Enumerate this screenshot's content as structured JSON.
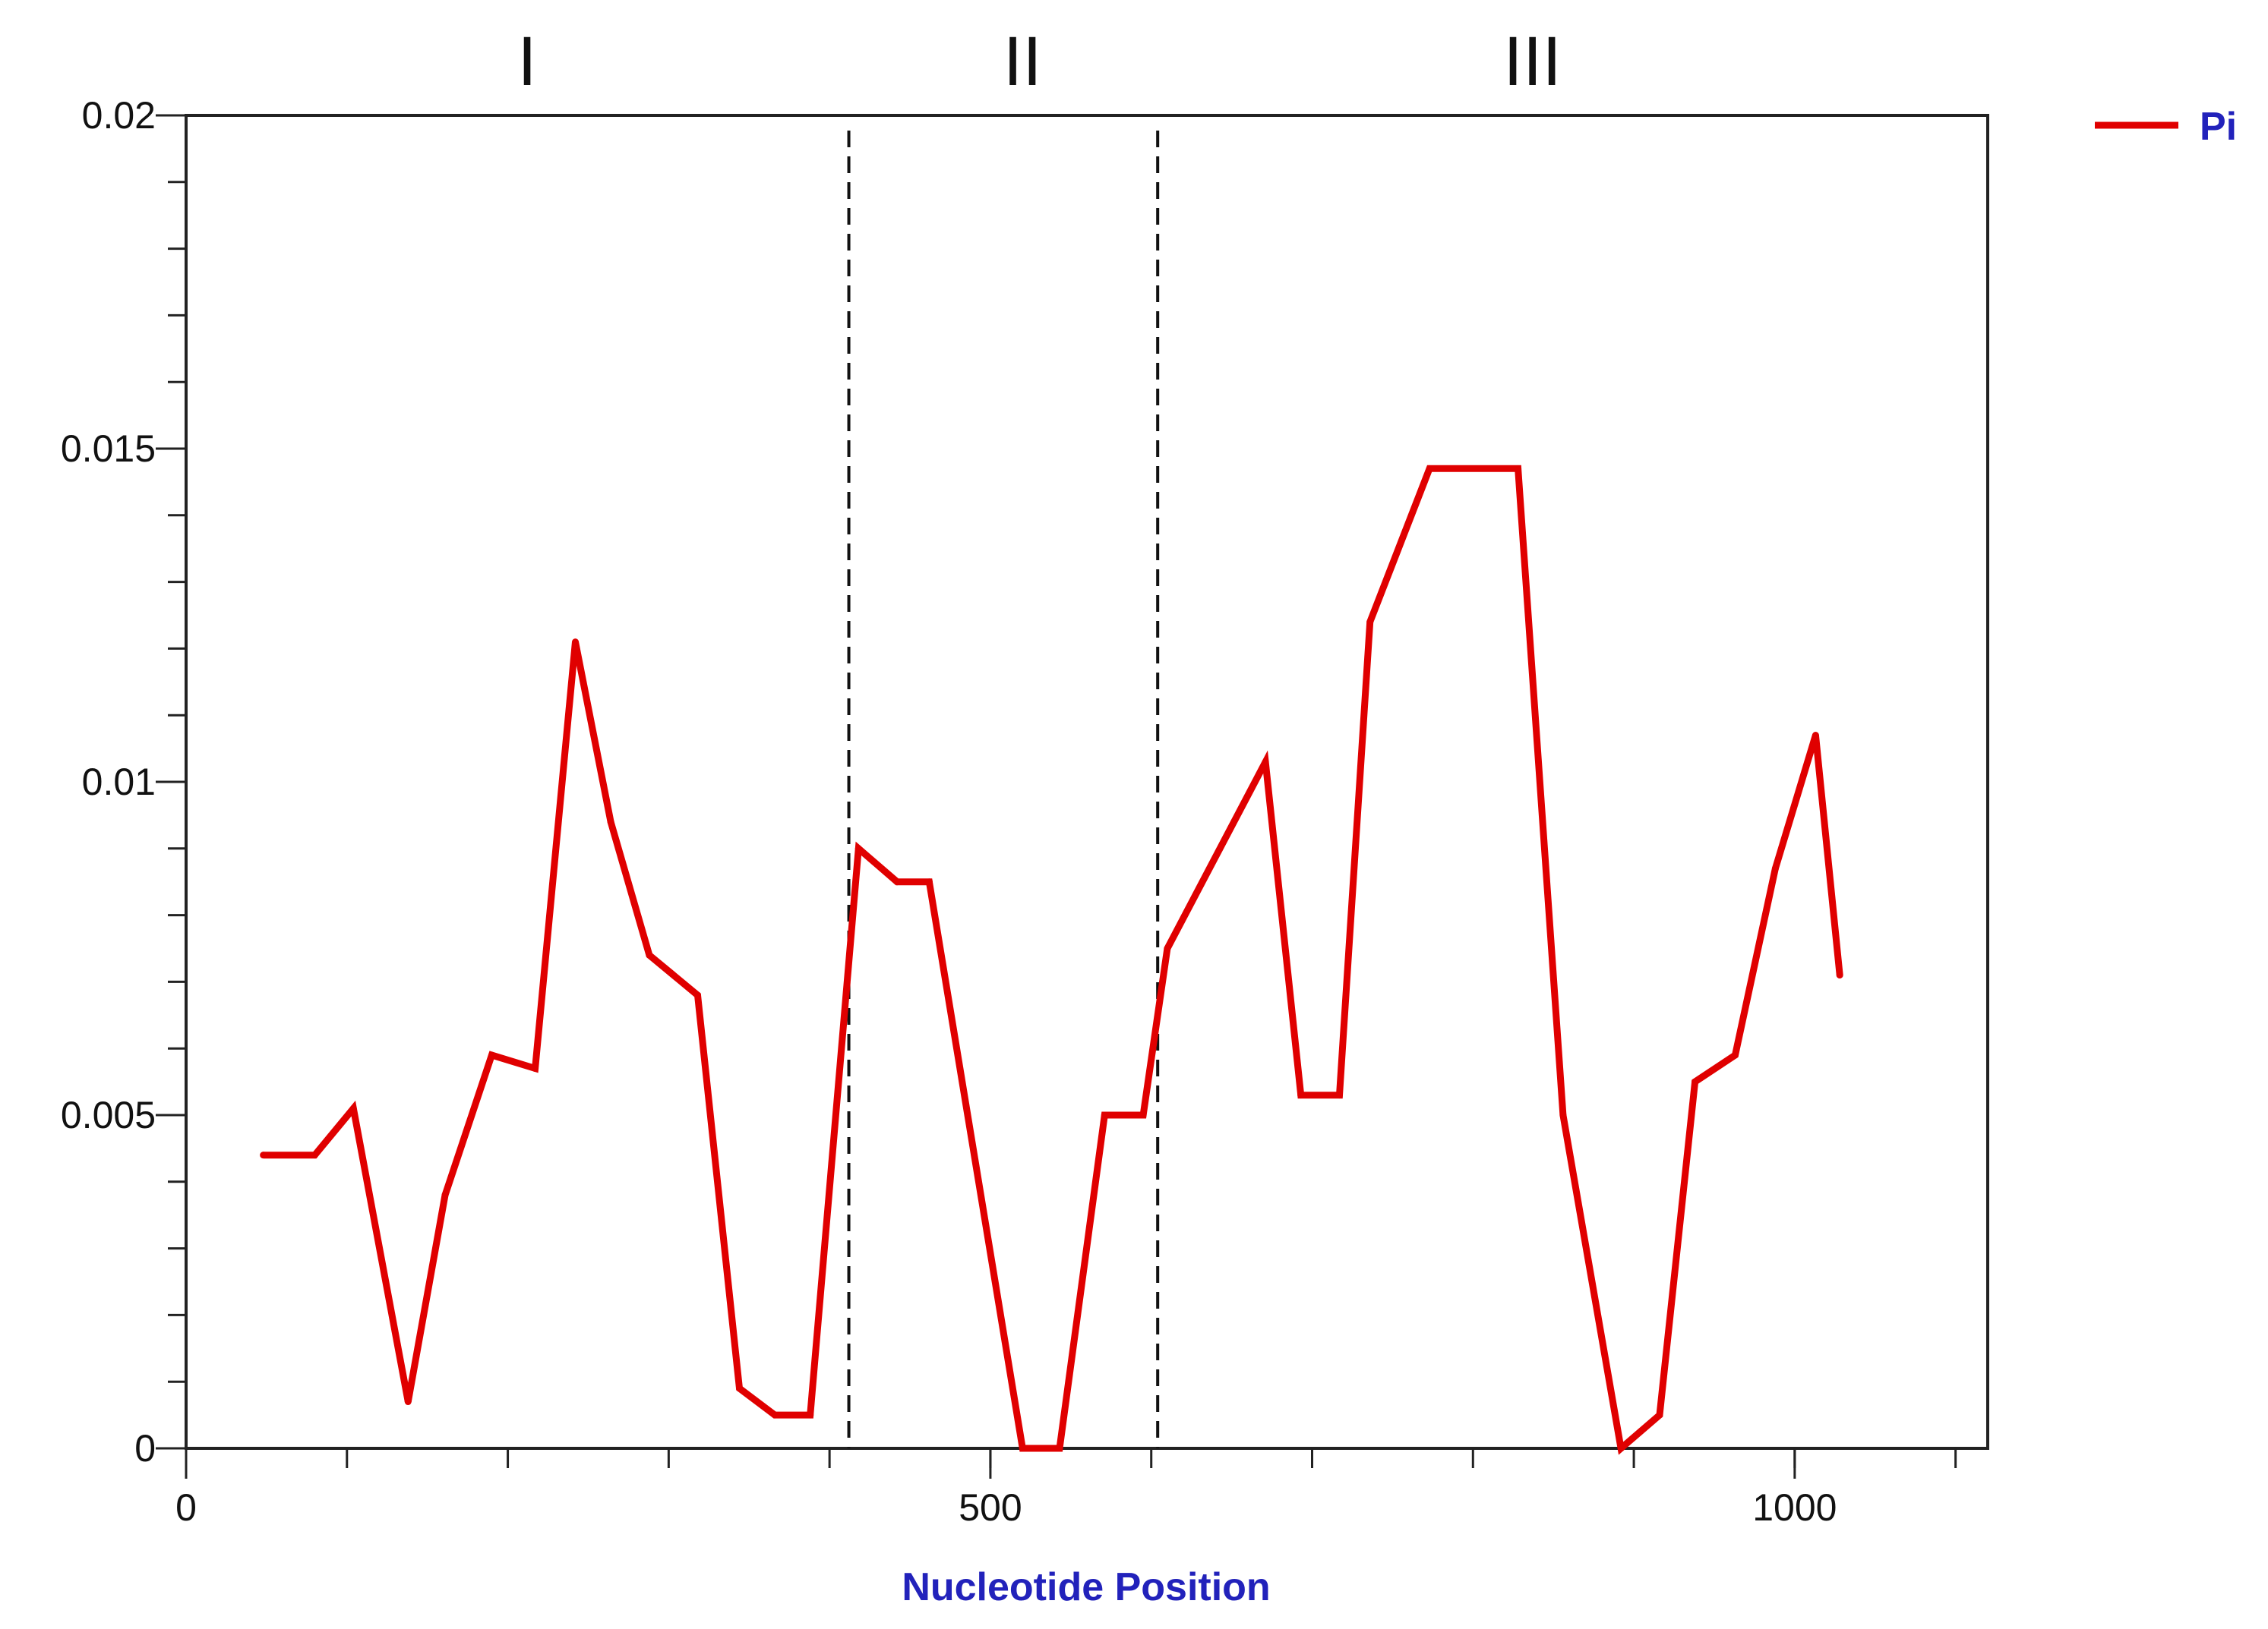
{
  "chart_data": {
    "type": "line",
    "title": "",
    "xlabel": "Nucleotide Position",
    "ylabel": "",
    "xlim": [
      0,
      1120
    ],
    "ylim": [
      0,
      0.02
    ],
    "x_major_ticks": [
      0,
      500,
      1000
    ],
    "x_tick_labels": [
      "0",
      "500",
      "1000"
    ],
    "x_minor_step": 100,
    "y_ticks": [
      0,
      0.005,
      0.01,
      0.015,
      0.02
    ],
    "y_tick_labels": [
      "0",
      "0.005",
      "0.01",
      "0.015",
      "0.02"
    ],
    "y_minor_step": 0.001,
    "grid": false,
    "legend_position": "top-right",
    "regions": [
      {
        "label": "I",
        "x_center": 212
      },
      {
        "label": "II",
        "x_center": 520
      },
      {
        "label": "III",
        "x_center": 837
      }
    ],
    "dividers": [
      412,
      604
    ],
    "series": [
      {
        "name": "Pi",
        "color": "#e00000",
        "x": [
          48,
          80,
          104,
          138,
          161,
          190,
          217,
          242,
          264,
          288,
          318,
          344,
          366,
          388,
          418,
          442,
          462,
          520,
          543,
          571,
          595,
          610,
          671,
          693,
          717,
          736,
          773,
          828,
          856,
          892,
          916,
          938,
          963,
          988,
          1013,
          1028
        ],
        "y": [
          0.0044,
          0.0044,
          0.0051,
          0.0007,
          0.0038,
          0.0059,
          0.0057,
          0.0121,
          0.0094,
          0.0074,
          0.0068,
          0.0009,
          0.0005,
          0.0005,
          0.009,
          0.0085,
          0.0085,
          0.0,
          0.0,
          0.005,
          0.005,
          0.0075,
          0.0103,
          0.0053,
          0.0053,
          0.0124,
          0.0147,
          0.0147,
          0.005,
          0.0,
          0.0005,
          0.0055,
          0.0059,
          0.0087,
          0.0107,
          0.0071
        ]
      }
    ]
  }
}
